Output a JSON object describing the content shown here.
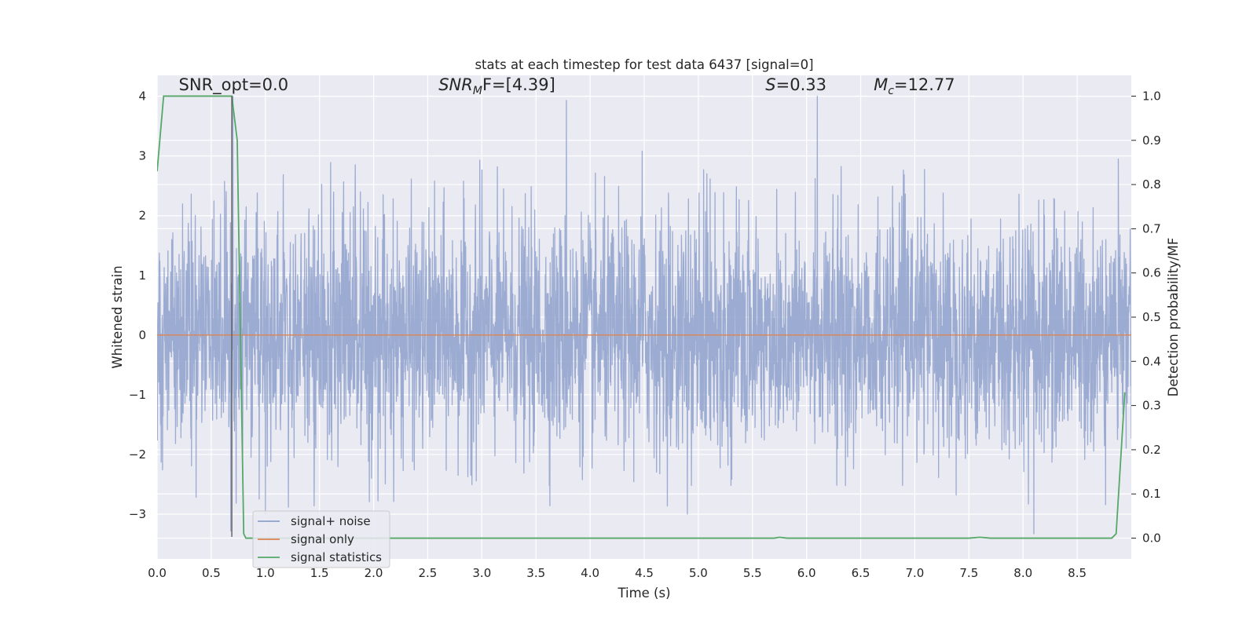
{
  "chart_data": {
    "type": "line",
    "title": "stats at each timestep for test data 6437 [signal=0]",
    "xlabel": "Time (s)",
    "ylabel": "Whitened strain",
    "y2label": "Detection probability/MF",
    "xlim": [
      0,
      9.0
    ],
    "ylim": [
      -3.75,
      4.35
    ],
    "y2lim": [
      -0.047,
      1.047
    ],
    "xticks": [
      0.0,
      0.5,
      1.0,
      1.5,
      2.0,
      2.5,
      3.0,
      3.5,
      4.0,
      4.5,
      5.0,
      5.5,
      6.0,
      6.5,
      7.0,
      7.5,
      8.0,
      8.5
    ],
    "xtick_labels": [
      "0.0",
      "0.5",
      "1.0",
      "1.5",
      "2.0",
      "2.5",
      "3.0",
      "3.5",
      "4.0",
      "4.5",
      "5.0",
      "5.5",
      "6.0",
      "6.5",
      "7.0",
      "7.5",
      "8.0",
      "8.5"
    ],
    "yticks": [
      -3,
      -2,
      -1,
      0,
      1,
      2,
      3,
      4
    ],
    "ytick_labels": [
      "−3",
      "−2",
      "−1",
      "0",
      "1",
      "2",
      "3",
      "4"
    ],
    "y2ticks": [
      0.0,
      0.1,
      0.2,
      0.3,
      0.4,
      0.5,
      0.6,
      0.7,
      0.8,
      0.9,
      1.0
    ],
    "y2tick_labels": [
      "0.0",
      "0.1",
      "0.2",
      "0.3",
      "0.4",
      "0.5",
      "0.6",
      "0.7",
      "0.8",
      "0.9",
      "1.0"
    ],
    "grid": true,
    "legend_position": "lower-left",
    "annotations": {
      "snr_opt": {
        "text": "SNR_opt=0.0",
        "x": 0.2,
        "y": 4.1
      },
      "snr_mf": {
        "prefix": "SNR",
        "sub": "M",
        "suffix": "F=[4.39]",
        "x": 2.6,
        "y": 4.1
      },
      "s_value": {
        "var": "S",
        "suffix": "=0.33",
        "x": 5.62,
        "y": 4.1
      },
      "mc_value": {
        "var": "M",
        "sub": "c",
        "suffix": "=12.77",
        "x": 6.62,
        "y": 4.1
      }
    },
    "vline": {
      "x": 0.69,
      "y": [
        -3.38,
        4.0
      ],
      "color": "#555555"
    },
    "series": [
      {
        "name": "signal+ noise",
        "color": "#8da0cb",
        "kind": "noise",
        "t_start": 0.0,
        "t_end": 9.0,
        "sigma": 0.95,
        "spikes": [
          {
            "t": 3.78,
            "v": 3.93
          },
          {
            "t": 6.1,
            "v": 4.0
          },
          {
            "t": 6.08,
            "v": 2.62
          },
          {
            "t": 4.48,
            "v": 3.08
          },
          {
            "t": 2.98,
            "v": 2.93
          },
          {
            "t": 8.88,
            "v": 2.95
          },
          {
            "t": 5.05,
            "v": 2.77
          },
          {
            "t": 1.83,
            "v": 2.85
          },
          {
            "t": 4.9,
            "v": -3.0
          },
          {
            "t": 8.1,
            "v": -3.33
          },
          {
            "t": 0.7,
            "v": 4.0
          },
          {
            "t": 0.68,
            "v": -3.28
          },
          {
            "t": 1.0,
            "v": -3.0
          }
        ]
      },
      {
        "name": "signal only",
        "color": "#dd8452",
        "x": [
          0.0,
          9.0
        ],
        "y": [
          0.0,
          0.0
        ]
      },
      {
        "name": "signal statistics",
        "color": "#55a868",
        "axis": "right",
        "x": [
          0.0,
          0.06,
          0.12,
          0.5,
          0.69,
          0.74,
          0.8,
          0.82,
          5.7,
          5.75,
          5.82,
          7.5,
          7.6,
          7.7,
          8.82,
          8.86,
          8.94
        ],
        "y": [
          0.83,
          1.0,
          1.0,
          1.0,
          1.0,
          0.9,
          0.01,
          0.0,
          0.0,
          0.002,
          0.0,
          0.0,
          0.002,
          0.0,
          0.0,
          0.01,
          0.33
        ]
      }
    ]
  }
}
